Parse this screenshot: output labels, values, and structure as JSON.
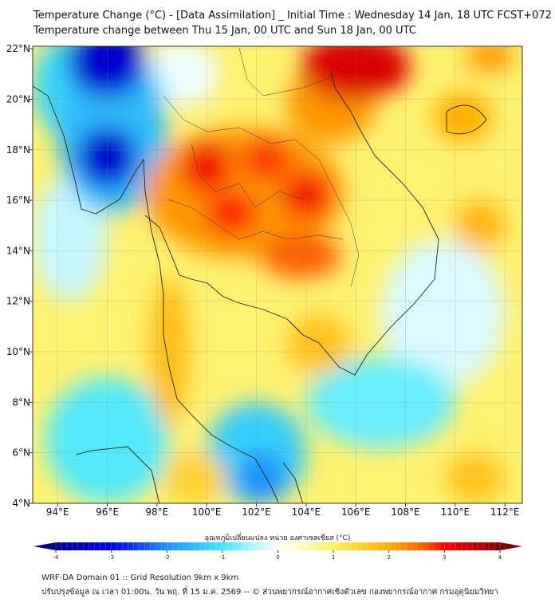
{
  "header": {
    "title": "Temperature Change (°C) - [Data Assimilation] _ Initial Time : Wednesday 14 Jan, 18 UTC FCST+072",
    "subtitle": "Temperature change between Thu 15 Jan, 00 UTC and Sun 18 Jan, 00 UTC"
  },
  "map": {
    "lon_range": [
      93,
      112.7
    ],
    "lat_range": [
      4,
      22.1
    ],
    "x_ticks": [
      {
        "v": 94,
        "label": "94°E"
      },
      {
        "v": 96,
        "label": "96°E"
      },
      {
        "v": 98,
        "label": "98°E"
      },
      {
        "v": 100,
        "label": "100°E"
      },
      {
        "v": 102,
        "label": "102°E"
      },
      {
        "v": 104,
        "label": "104°E"
      },
      {
        "v": 106,
        "label": "106°E"
      },
      {
        "v": 108,
        "label": "108°E"
      },
      {
        "v": 110,
        "label": "110°E"
      },
      {
        "v": 112,
        "label": "112°E"
      }
    ],
    "y_ticks": [
      {
        "v": 4,
        "label": "4°N"
      },
      {
        "v": 6,
        "label": "6°N"
      },
      {
        "v": 8,
        "label": "8°N"
      },
      {
        "v": 10,
        "label": "10°N"
      },
      {
        "v": 12,
        "label": "12°N"
      },
      {
        "v": 14,
        "label": "14°N"
      },
      {
        "v": 16,
        "label": "16°N"
      },
      {
        "v": 18,
        "label": "18°N"
      },
      {
        "v": 20,
        "label": "20°N"
      },
      {
        "v": 22,
        "label": "22°N"
      }
    ],
    "background_value": 0.9,
    "field_blobs": [
      {
        "lon": 96,
        "lat": 21.5,
        "rx": 1.6,
        "ry": 1.4,
        "v": -3.2
      },
      {
        "lon": 94.5,
        "lat": 20.5,
        "rx": 1.5,
        "ry": 2,
        "v": -1.2
      },
      {
        "lon": 96,
        "lat": 17.7,
        "rx": 1.2,
        "ry": 1.2,
        "v": -3.2
      },
      {
        "lon": 96.2,
        "lat": 18.5,
        "rx": 2.2,
        "ry": 3,
        "v": -1.5
      },
      {
        "lon": 97,
        "lat": 20,
        "rx": 1.3,
        "ry": 1.5,
        "v": -1.2
      },
      {
        "lon": 94.5,
        "lat": 14.5,
        "rx": 1.5,
        "ry": 2.5,
        "v": -0.3
      },
      {
        "lon": 96,
        "lat": 6.5,
        "rx": 2.5,
        "ry": 2.5,
        "v": -0.9
      },
      {
        "lon": 102,
        "lat": 6,
        "rx": 2,
        "ry": 2,
        "v": -1.3
      },
      {
        "lon": 102.2,
        "lat": 5,
        "rx": 1,
        "ry": 1,
        "v": -2
      },
      {
        "lon": 107,
        "lat": 8,
        "rx": 3,
        "ry": 1.8,
        "v": -0.8
      },
      {
        "lon": 109.5,
        "lat": 11.5,
        "rx": 2.5,
        "ry": 3,
        "v": -0.2
      },
      {
        "lon": 99,
        "lat": 21,
        "rx": 1.5,
        "ry": 1.3,
        "v": -0.1
      },
      {
        "lon": 101.5,
        "lat": 16.3,
        "rx": 4,
        "ry": 2.6,
        "v": 2.2
      },
      {
        "lon": 100,
        "lat": 17.3,
        "rx": 1,
        "ry": 1,
        "v": 3.1
      },
      {
        "lon": 101,
        "lat": 15.5,
        "rx": 1,
        "ry": 0.8,
        "v": 3.0
      },
      {
        "lon": 102.4,
        "lat": 17.6,
        "rx": 1,
        "ry": 0.8,
        "v": 2.8
      },
      {
        "lon": 104,
        "lat": 16.2,
        "rx": 1,
        "ry": 0.9,
        "v": 3.1
      },
      {
        "lon": 103.8,
        "lat": 13.8,
        "rx": 1.6,
        "ry": 0.9,
        "v": 2.6
      },
      {
        "lon": 106,
        "lat": 21.3,
        "rx": 2.2,
        "ry": 1.3,
        "v": 3.3
      },
      {
        "lon": 105,
        "lat": 19.8,
        "rx": 1.8,
        "ry": 1.5,
        "v": 2.2
      },
      {
        "lon": 110.3,
        "lat": 19.3,
        "rx": 1.2,
        "ry": 1,
        "v": 2.0
      },
      {
        "lon": 111.4,
        "lat": 21.7,
        "rx": 1,
        "ry": 0.6,
        "v": 2.2
      },
      {
        "lon": 111,
        "lat": 15,
        "rx": 1,
        "ry": 1,
        "v": 1.9
      },
      {
        "lon": 98.5,
        "lat": 10,
        "rx": 0.8,
        "ry": 3,
        "v": 1.8
      },
      {
        "lon": 104.5,
        "lat": 10.3,
        "rx": 1.3,
        "ry": 1.2,
        "v": 1.7
      },
      {
        "lon": 110.8,
        "lat": 5,
        "rx": 1.2,
        "ry": 1,
        "v": 1.7
      },
      {
        "lon": 99.5,
        "lat": 5,
        "rx": 1.3,
        "ry": 1,
        "v": 1.5
      }
    ]
  },
  "colorbar": {
    "label": "อุณหภูมิเปลี่ยนแปลง หน่วย องศาเซลเซียส (°C)",
    "min": -4,
    "max": 4,
    "ticks": [
      {
        "v": -4,
        "label": "-4"
      },
      {
        "v": -3,
        "label": "-3"
      },
      {
        "v": -2,
        "label": "-2"
      },
      {
        "v": -1,
        "label": "-1"
      },
      {
        "v": 0,
        "label": "0"
      },
      {
        "v": 1,
        "label": "1"
      },
      {
        "v": 2,
        "label": "2"
      },
      {
        "v": 3,
        "label": "3"
      },
      {
        "v": 4,
        "label": "4"
      }
    ],
    "stops": [
      {
        "v": -4,
        "c": "#00008b"
      },
      {
        "v": -3,
        "c": "#0000e0"
      },
      {
        "v": -2,
        "c": "#1e90ff"
      },
      {
        "v": -1,
        "c": "#40e8f8"
      },
      {
        "v": -0.3,
        "c": "#c8f8ff"
      },
      {
        "v": 0,
        "c": "#ffffff"
      },
      {
        "v": 0.5,
        "c": "#fffcb0"
      },
      {
        "v": 1,
        "c": "#fff060"
      },
      {
        "v": 2,
        "c": "#ffb000"
      },
      {
        "v": 2.6,
        "c": "#ff6000"
      },
      {
        "v": 3,
        "c": "#ff0000"
      },
      {
        "v": 4,
        "c": "#800000"
      }
    ]
  },
  "footer": {
    "line1": "WRF-DA Domain 01 :: Grid Resolution 9km x 9km",
    "line2": "ปรับปรุงข้อมูล ณ เวลา 01:00น. วัน พฤ. ที่ 15 ม.ค. 2569 -- © ส่วนพยากรณ์อากาศเชิงตัวเลข กองพยากรณ์อากาศ กรมอุตุนิยมวิทยา"
  }
}
